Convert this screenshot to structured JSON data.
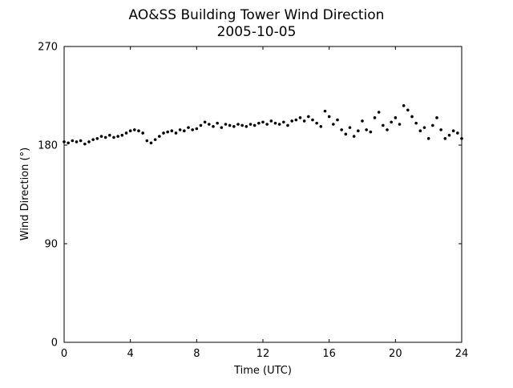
{
  "chart_data": {
    "type": "scatter",
    "title": "AO&SS Building Tower Wind Direction",
    "subtitle": "2005-10-05",
    "xlabel": "Time (UTC)",
    "ylabel": "Wind Direction (°)",
    "color": "#000000",
    "xlim": [
      0,
      24
    ],
    "xticks": [
      0,
      4,
      8,
      12,
      16,
      20,
      24
    ],
    "ylim": [
      0,
      270
    ],
    "yticks": [
      0,
      90,
      180,
      270
    ],
    "x": [
      0,
      0.25,
      0.5,
      0.75,
      1,
      1.25,
      1.5,
      1.75,
      2,
      2.25,
      2.5,
      2.75,
      3,
      3.25,
      3.5,
      3.75,
      4,
      4.25,
      4.5,
      4.75,
      5,
      5.25,
      5.5,
      5.75,
      6,
      6.25,
      6.5,
      6.75,
      7,
      7.25,
      7.5,
      7.75,
      8,
      8.25,
      8.5,
      8.75,
      9,
      9.25,
      9.5,
      9.75,
      10,
      10.25,
      10.5,
      10.75,
      11,
      11.25,
      11.5,
      11.75,
      12,
      12.25,
      12.5,
      12.75,
      13,
      13.25,
      13.5,
      13.75,
      14,
      14.25,
      14.5,
      14.75,
      15,
      15.25,
      15.5,
      15.75,
      16,
      16.25,
      16.5,
      16.75,
      17,
      17.25,
      17.5,
      17.75,
      18,
      18.25,
      18.5,
      18.75,
      19,
      19.25,
      19.5,
      19.75,
      20,
      20.25,
      20.5,
      20.75,
      21,
      21.25,
      21.5,
      21.75,
      22,
      22.25,
      22.5,
      22.75,
      23,
      23.25,
      23.5,
      23.75,
      24
    ],
    "values": [
      183,
      182,
      184,
      183,
      184,
      181,
      183,
      185,
      186,
      188,
      187,
      189,
      187,
      188,
      189,
      191,
      193,
      194,
      193,
      191,
      184,
      182,
      185,
      188,
      191,
      192,
      193,
      191,
      194,
      193,
      196,
      194,
      195,
      198,
      201,
      199,
      197,
      200,
      196,
      199,
      198,
      197,
      199,
      198,
      197,
      199,
      198,
      200,
      201,
      199,
      202,
      200,
      199,
      201,
      198,
      202,
      203,
      205,
      202,
      206,
      203,
      200,
      197,
      211,
      206,
      199,
      203,
      194,
      190,
      196,
      188,
      193,
      202,
      194,
      192,
      205,
      210,
      198,
      194,
      201,
      205,
      199,
      216,
      212,
      206,
      200,
      193,
      196,
      186,
      198,
      205,
      194,
      186,
      189,
      193,
      191,
      186
    ]
  }
}
